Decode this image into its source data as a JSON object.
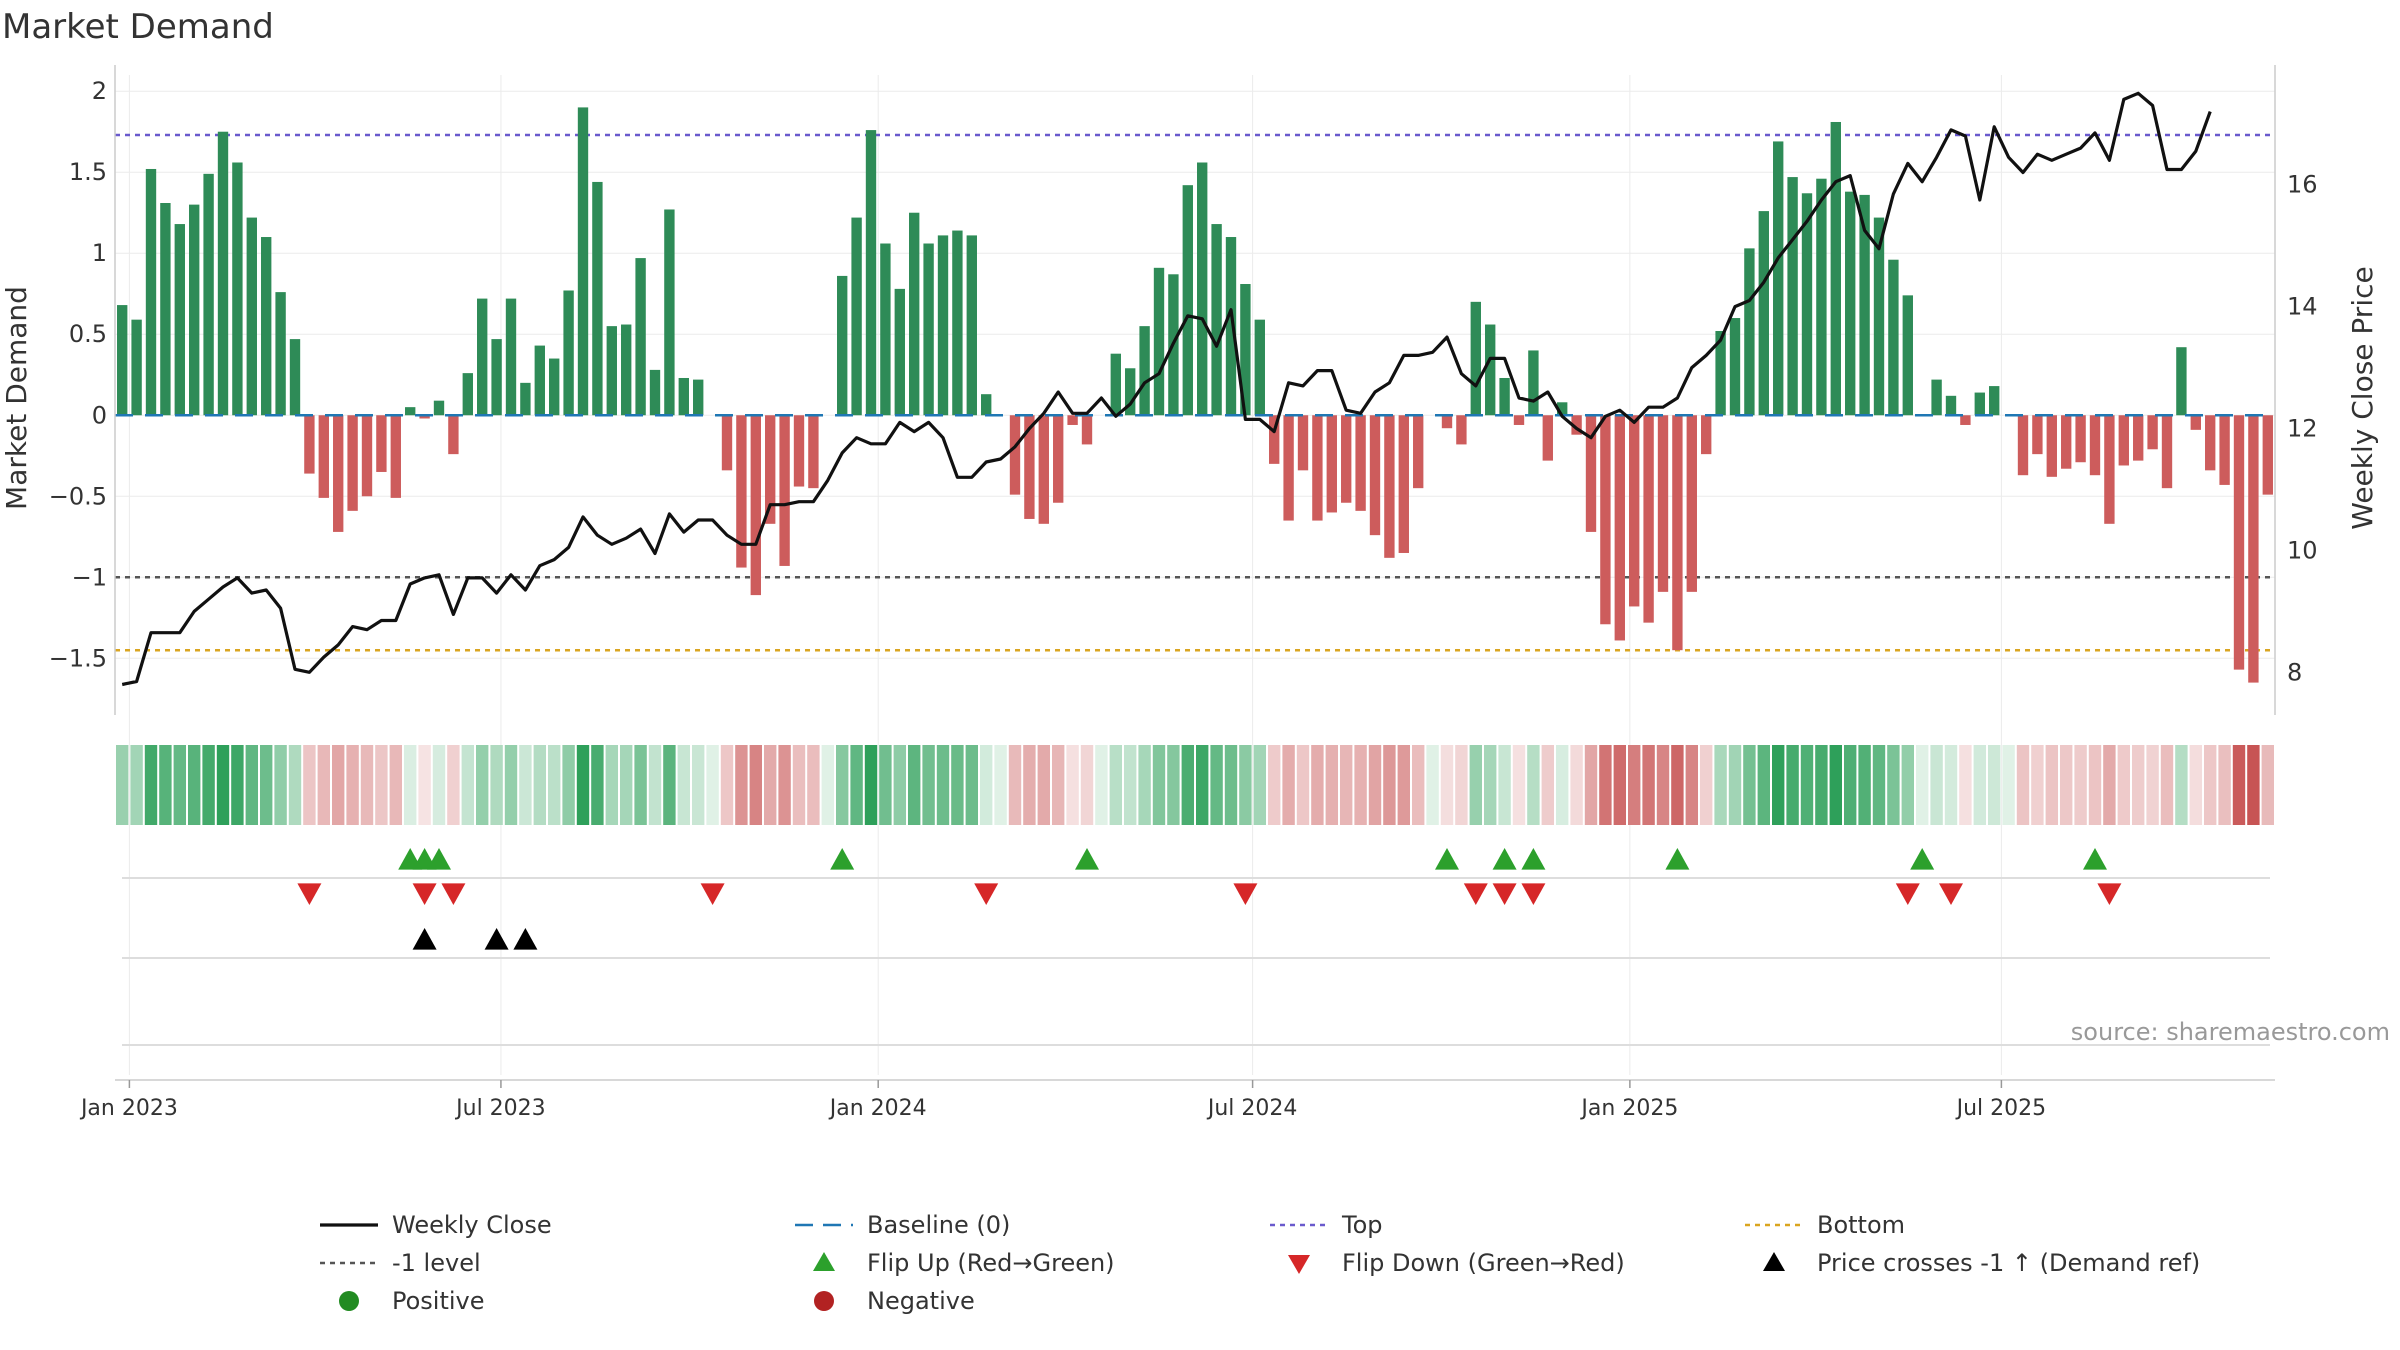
{
  "chart_data": {
    "type": "bar+line",
    "title": "Market Demand",
    "ylabel": "Market Demand",
    "y2label": "Weekly Close Price",
    "ylim": [
      -1.85,
      2.1
    ],
    "y2lim": [
      7.3,
      17.8
    ],
    "yticks": [
      "2",
      "1.5",
      "1",
      "0.5",
      "0",
      "−0.5",
      "−1",
      "−1.5"
    ],
    "ytick_values": [
      2,
      1.5,
      1,
      0.5,
      0,
      -0.5,
      -1,
      -1.5
    ],
    "y2ticks": [
      "16",
      "14",
      "12",
      "10",
      "8"
    ],
    "y2tick_values": [
      16,
      14,
      12,
      10,
      8
    ],
    "xticks": [
      "Jan 2023",
      "Jul 2023",
      "Jan 2024",
      "Jul 2024",
      "Jan 2025",
      "Jul 2025"
    ],
    "xtick_weeks": [
      0.5,
      26.3,
      52.5,
      78.5,
      104.7,
      130.5
    ],
    "top_level": 1.73,
    "bottom_level": -1.45,
    "minus_one_level": -1,
    "baseline": 0,
    "source": "source: sharemaestro.com",
    "demand": [
      0.68,
      0.59,
      1.52,
      1.31,
      1.18,
      1.3,
      1.49,
      1.75,
      1.56,
      1.22,
      1.1,
      0.76,
      0.47,
      -0.36,
      -0.51,
      -0.72,
      -0.59,
      -0.5,
      -0.35,
      -0.51,
      0.05,
      -0.02,
      0.09,
      -0.24,
      0.26,
      0.72,
      0.47,
      0.72,
      0.2,
      0.43,
      0.35,
      0.77,
      1.9,
      1.44,
      0.55,
      0.56,
      0.97,
      0.28,
      1.27,
      0.23,
      0.22,
      0.0,
      -0.34,
      -0.94,
      -1.11,
      -0.67,
      -0.93,
      -0.44,
      -0.45,
      0.0,
      0.86,
      1.22,
      1.76,
      1.06,
      0.78,
      1.25,
      1.06,
      1.11,
      1.14,
      1.11,
      0.13,
      0.0,
      -0.49,
      -0.64,
      -0.67,
      -0.54,
      -0.06,
      -0.18,
      0.0,
      0.38,
      0.29,
      0.55,
      0.91,
      0.87,
      1.42,
      1.56,
      1.18,
      1.1,
      0.81,
      0.59,
      -0.3,
      -0.65,
      -0.34,
      -0.65,
      -0.6,
      -0.54,
      -0.59,
      -0.74,
      -0.88,
      -0.85,
      -0.45,
      0.0,
      -0.08,
      -0.18,
      0.7,
      0.56,
      0.23,
      -0.06,
      0.4,
      -0.28,
      0.08,
      -0.12,
      -0.72,
      -1.29,
      -1.39,
      -1.18,
      -1.28,
      -1.09,
      -1.45,
      -1.09,
      -0.24,
      0.52,
      0.6,
      1.03,
      1.26,
      1.69,
      1.47,
      1.37,
      1.46,
      1.81,
      1.38,
      1.36,
      1.22,
      0.96,
      0.74,
      0.0,
      0.22,
      0.12,
      -0.06,
      0.14,
      0.18,
      0.0,
      -0.37,
      -0.24,
      -0.38,
      -0.33,
      -0.29,
      -0.37,
      -0.67,
      -0.31,
      -0.28,
      -0.21,
      -0.45,
      0.42,
      -0.09,
      -0.34,
      -0.43,
      -1.57,
      -1.65,
      -0.49
    ],
    "close": [
      7.8,
      7.85,
      8.65,
      8.65,
      8.65,
      9.0,
      9.2,
      9.4,
      9.55,
      9.3,
      9.35,
      9.05,
      8.05,
      8.0,
      8.25,
      8.45,
      8.75,
      8.7,
      8.85,
      8.85,
      9.45,
      9.55,
      9.6,
      8.95,
      9.55,
      9.55,
      9.3,
      9.6,
      9.35,
      9.75,
      9.85,
      10.05,
      10.55,
      10.25,
      10.1,
      10.2,
      10.35,
      9.95,
      10.6,
      10.3,
      10.5,
      10.5,
      10.25,
      10.1,
      10.1,
      10.75,
      10.75,
      10.8,
      10.8,
      11.15,
      11.6,
      11.85,
      11.75,
      11.75,
      12.1,
      11.95,
      12.1,
      11.85,
      11.2,
      11.2,
      11.45,
      11.5,
      11.7,
      12.0,
      12.25,
      12.6,
      12.25,
      12.25,
      12.5,
      12.2,
      12.4,
      12.75,
      12.9,
      13.4,
      13.85,
      13.8,
      13.35,
      13.95,
      12.15,
      12.15,
      11.95,
      12.75,
      12.7,
      12.95,
      12.95,
      12.3,
      12.25,
      12.6,
      12.75,
      13.2,
      13.2,
      13.25,
      13.5,
      12.9,
      12.7,
      13.15,
      13.15,
      12.5,
      12.45,
      12.6,
      12.2,
      12.0,
      11.85,
      12.2,
      12.3,
      12.1,
      12.35,
      12.35,
      12.5,
      13.0,
      13.2,
      13.45,
      14.0,
      14.1,
      14.4,
      14.8,
      15.1,
      15.4,
      15.75,
      16.05,
      16.15,
      15.25,
      14.95,
      15.85,
      16.35,
      16.05,
      16.45,
      16.9,
      16.8,
      15.75,
      16.95,
      16.45,
      16.2,
      16.5,
      16.4,
      16.5,
      16.6,
      16.85,
      16.4,
      17.4,
      17.5,
      17.3,
      16.25,
      16.25,
      16.55,
      17.2
    ],
    "flip_up_weeks": [
      20,
      21,
      22,
      50,
      67,
      92,
      96,
      98,
      108,
      125,
      137
    ],
    "flip_down_weeks": [
      13,
      21,
      23,
      41,
      60,
      78,
      94,
      96,
      98,
      124,
      127,
      138
    ],
    "price_cross_weeks": [
      21,
      26,
      28
    ]
  },
  "legend": {
    "items": [
      {
        "label": "Weekly Close"
      },
      {
        "label": "Baseline (0)"
      },
      {
        "label": "Top"
      },
      {
        "label": "Bottom"
      },
      {
        "label": "-1 level"
      },
      {
        "label": "Flip Up (Red→Green)"
      },
      {
        "label": "Flip Down (Green→Red)"
      },
      {
        "label": "Price crosses -1 ↑ (Demand ref)"
      },
      {
        "label": "Positive"
      },
      {
        "label": "Negative"
      }
    ]
  },
  "colors": {
    "positive": "#2e8b57",
    "negative": "#cd5c5c",
    "line": "#111111",
    "baseline": "#1f77b4",
    "top": "#6a5acd",
    "bottom": "#daa520",
    "minus_one": "#555555",
    "flip_up": "#2ca02c",
    "flip_down": "#d62728",
    "cross": "#000000",
    "pos_dot": "#228b22",
    "neg_dot": "#b22222"
  }
}
